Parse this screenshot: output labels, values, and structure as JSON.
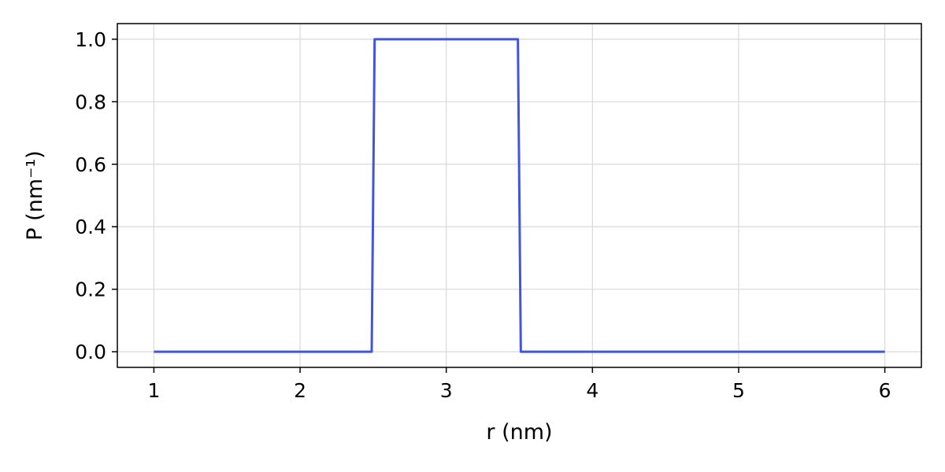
{
  "chart_data": {
    "type": "line",
    "title": "",
    "xlabel": "r (nm)",
    "ylabel": "P (nm⁻¹)",
    "xlim": [
      0.75,
      6.25
    ],
    "ylim": [
      -0.05,
      1.05
    ],
    "x_ticks": [
      1,
      2,
      3,
      4,
      5,
      6
    ],
    "x_tick_labels": [
      "1",
      "2",
      "3",
      "4",
      "5",
      "6"
    ],
    "y_ticks": [
      0.0,
      0.2,
      0.4,
      0.6,
      0.8,
      1.0
    ],
    "y_tick_labels": [
      "0.0",
      "0.2",
      "0.4",
      "0.6",
      "0.8",
      "1.0"
    ],
    "grid": true,
    "series": [
      {
        "color": "#4455dd",
        "x": [
          1.0,
          2.49,
          2.51,
          3.49,
          3.51,
          6.0
        ],
        "y": [
          0.0,
          0.0,
          1.0,
          1.0,
          0.0,
          0.0
        ]
      }
    ]
  }
}
